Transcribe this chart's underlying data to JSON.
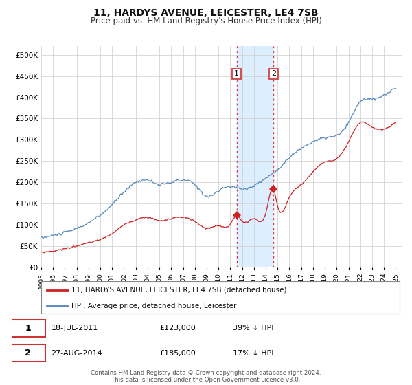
{
  "title": "11, HARDYS AVENUE, LEICESTER, LE4 7SB",
  "subtitle": "Price paid vs. HM Land Registry's House Price Index (HPI)",
  "ylim": [
    0,
    520000
  ],
  "yticks": [
    0,
    50000,
    100000,
    150000,
    200000,
    250000,
    300000,
    350000,
    400000,
    450000,
    500000
  ],
  "ytick_labels": [
    "£0",
    "£50K",
    "£100K",
    "£150K",
    "£200K",
    "£250K",
    "£300K",
    "£350K",
    "£400K",
    "£450K",
    "£500K"
  ],
  "xmin_year": 1995,
  "xmax_year": 2025.5,
  "xticks": [
    1995,
    1996,
    1997,
    1998,
    1999,
    2000,
    2001,
    2002,
    2003,
    2004,
    2005,
    2006,
    2007,
    2008,
    2009,
    2010,
    2011,
    2012,
    2013,
    2014,
    2015,
    2016,
    2017,
    2018,
    2019,
    2020,
    2021,
    2022,
    2023,
    2024,
    2025
  ],
  "hpi_color": "#5588bb",
  "price_color": "#cc2222",
  "marker_color": "#cc2222",
  "sale1_date": 2011.54,
  "sale1_price": 123000,
  "sale2_date": 2014.65,
  "sale2_price": 185000,
  "shade_color": "#ddeeff",
  "annotation1": "18-JUL-2011",
  "annotation1_price": "£123,000",
  "annotation1_pct": "39% ↓ HPI",
  "annotation2": "27-AUG-2014",
  "annotation2_price": "£185,000",
  "annotation2_pct": "17% ↓ HPI",
  "legend_label1": "11, HARDYS AVENUE, LEICESTER, LE4 7SB (detached house)",
  "legend_label2": "HPI: Average price, detached house, Leicester",
  "footer": "Contains HM Land Registry data © Crown copyright and database right 2024.\nThis data is licensed under the Open Government Licence v3.0.",
  "bg_color": "#ffffff",
  "grid_color": "#cccccc"
}
